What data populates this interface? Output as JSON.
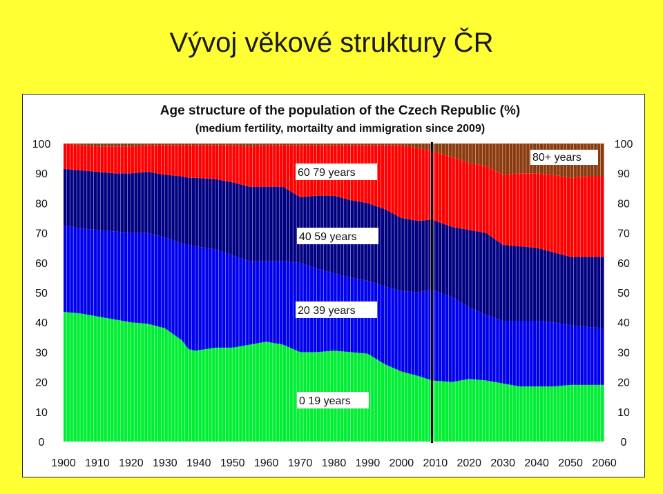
{
  "page": {
    "title": "Vývoj věkové struktury ČR"
  },
  "chart_data": {
    "type": "area",
    "title": "Age structure of the population of the Czech Republic (%)",
    "subtitle": "(medium fertility, mortailty and immigration since 2009)",
    "x": [
      1900,
      1905,
      1910,
      1915,
      1920,
      1925,
      1930,
      1935,
      1937,
      1939,
      1945,
      1950,
      1955,
      1960,
      1965,
      1970,
      1975,
      1980,
      1985,
      1990,
      1995,
      2000,
      2005,
      2009,
      2015,
      2020,
      2025,
      2030,
      2035,
      2040,
      2045,
      2050,
      2055,
      2060
    ],
    "series": [
      {
        "name": "0 19 years",
        "color": "#00ee33",
        "values": [
          43.5,
          43,
          42,
          41,
          40,
          39.5,
          38,
          34,
          31,
          30.5,
          31.5,
          31.5,
          32.5,
          33.5,
          32.5,
          30,
          30,
          30.5,
          30,
          29.5,
          26,
          23.5,
          22,
          20.5,
          20,
          21,
          20.5,
          19.5,
          18.5,
          18.5,
          18.5,
          19,
          19,
          19
        ]
      },
      {
        "name": "20 39 years",
        "color": "#0000ee",
        "values": [
          29,
          28.5,
          29,
          29.5,
          30,
          30.5,
          30.5,
          32.5,
          35,
          35,
          33,
          31,
          28,
          27,
          28,
          30,
          28,
          26,
          25,
          24.5,
          26,
          27,
          28,
          30.5,
          28.5,
          24,
          22,
          21,
          22,
          22,
          21.5,
          20,
          19.5,
          19
        ]
      },
      {
        "name": "40 59 years",
        "color": "#000080",
        "values": [
          19,
          19.5,
          19.5,
          19.5,
          20,
          20.5,
          21,
          22.5,
          22.5,
          23,
          23.5,
          24.5,
          25,
          25,
          25,
          22,
          24.5,
          26,
          26,
          26,
          26,
          24.5,
          24,
          23.5,
          23.5,
          26,
          27.5,
          25.5,
          25,
          24.5,
          23.5,
          23,
          23.5,
          24
        ]
      },
      {
        "name": "60 79 years",
        "color": "#ff0000",
        "values": [
          8.5,
          8.5,
          8.5,
          9,
          9,
          9,
          10,
          10.5,
          11,
          11,
          11.5,
          12.5,
          13.5,
          14,
          14,
          17.5,
          17,
          17,
          18.5,
          19.5,
          21.5,
          24.5,
          24.5,
          23,
          23.5,
          22.5,
          22.5,
          23.5,
          24.5,
          25,
          26,
          26.5,
          27,
          27
        ]
      },
      {
        "name": "80+ years",
        "color": "#8b3a0e",
        "values": [
          0,
          0.5,
          1,
          1,
          1,
          0.5,
          0.5,
          0.5,
          0.5,
          0.5,
          0.5,
          0.5,
          1,
          0.5,
          0.5,
          0.5,
          0.5,
          0.5,
          0.5,
          0.5,
          0.5,
          0.5,
          1.5,
          2.5,
          4.5,
          6.5,
          7.5,
          10.5,
          10,
          10,
          10.5,
          11.5,
          11,
          11
        ]
      }
    ],
    "labels": [
      "0 19 years",
      "20 39 years",
      "40 59 years",
      "60 79 years",
      "80+ years"
    ],
    "ylim": [
      0,
      100
    ],
    "y_ticks": [
      0,
      10,
      20,
      30,
      40,
      50,
      60,
      70,
      80,
      90,
      100
    ],
    "x_ticks": [
      1900,
      1910,
      1920,
      1930,
      1940,
      1950,
      1960,
      1970,
      1980,
      1990,
      2000,
      2010,
      2020,
      2030,
      2040,
      2050,
      2060
    ],
    "marker_year": 2009,
    "dual_y_axis": true,
    "grid": false
  }
}
